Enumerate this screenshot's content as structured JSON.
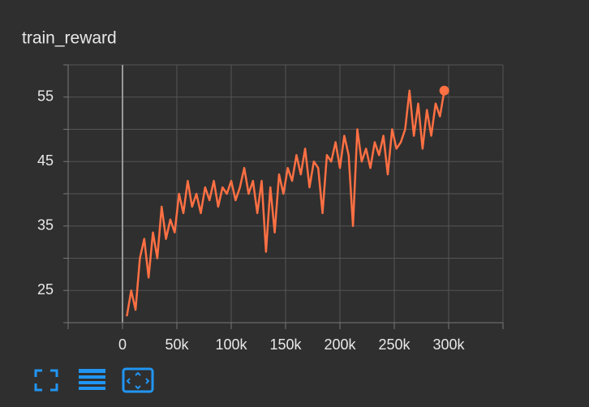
{
  "chart_data": {
    "type": "line",
    "title": "train_reward",
    "x": [
      4000,
      8000,
      12000,
      16000,
      20000,
      24000,
      28000,
      32000,
      36000,
      40000,
      44000,
      48000,
      52000,
      56000,
      60000,
      64000,
      68000,
      72000,
      76000,
      80000,
      84000,
      88000,
      92000,
      96000,
      100000,
      104000,
      108000,
      112000,
      116000,
      120000,
      124000,
      128000,
      132000,
      136000,
      140000,
      144000,
      148000,
      152000,
      156000,
      160000,
      164000,
      168000,
      172000,
      176000,
      180000,
      184000,
      188000,
      192000,
      196000,
      200000,
      204000,
      208000,
      212000,
      216000,
      220000,
      224000,
      228000,
      232000,
      236000,
      240000,
      244000,
      248000,
      252000,
      256000,
      260000,
      264000,
      268000,
      272000,
      276000,
      280000,
      284000,
      288000,
      292000,
      296000
    ],
    "values": [
      21,
      25,
      22,
      30,
      33,
      27,
      34,
      30,
      38,
      33,
      36,
      34,
      40,
      37,
      42,
      38,
      40,
      37,
      41,
      39,
      42,
      38,
      41,
      40,
      42,
      39,
      41,
      44,
      40,
      42,
      37,
      42,
      31,
      41,
      34,
      43,
      40,
      44,
      42,
      46,
      43,
      47,
      41,
      45,
      44,
      37,
      46,
      45,
      48,
      44,
      49,
      46,
      35,
      50,
      45,
      47,
      44,
      48,
      46,
      49,
      43,
      50,
      47,
      48,
      50,
      56,
      49,
      54,
      47,
      53,
      49,
      54,
      52,
      56
    ],
    "color": "#ff7043",
    "xlim": [
      -50000,
      350000
    ],
    "xticks": [
      0,
      {
        "value": 50000,
        "label": "50k"
      },
      {
        "value": 100000,
        "label": "100k"
      },
      {
        "value": 150000,
        "label": "150k"
      },
      {
        "value": 200000,
        "label": "200k"
      },
      {
        "value": 250000,
        "label": "250k"
      },
      {
        "value": 300000,
        "label": "300k"
      }
    ],
    "x_minor_ticks": [
      -50000,
      350000
    ],
    "ylim": [
      20,
      60
    ],
    "yticks": [
      25,
      35,
      45,
      55
    ],
    "y_minor_ticks": [
      20,
      30,
      40,
      50,
      60
    ],
    "grid": true
  }
}
